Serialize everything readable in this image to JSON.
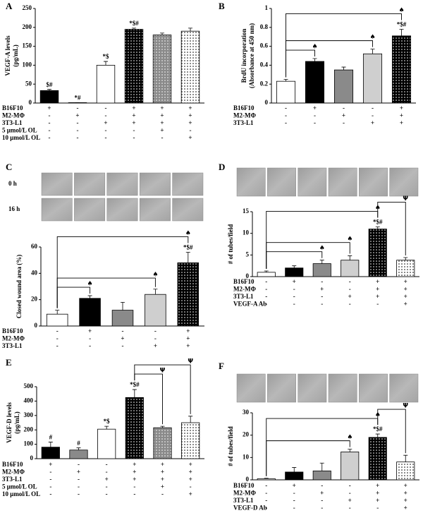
{
  "chart_data": [
    {
      "type": "bar",
      "panel": "A",
      "ylabel": [
        "VEGF-A levels",
        "(pg/mL)"
      ],
      "ylim": [
        0,
        250
      ],
      "yticks": [
        0,
        50,
        100,
        150,
        200,
        250
      ],
      "values": [
        33,
        1,
        100,
        195,
        180,
        190
      ],
      "errors": [
        3,
        0,
        10,
        3,
        5,
        8
      ],
      "colors": [
        "#000000",
        "#000000",
        "#ffffff",
        "#000000",
        "#8a8a8a",
        "#ffffff"
      ],
      "dotted": [
        false,
        false,
        false,
        true,
        true,
        true
      ],
      "bar_labels": [
        "$#",
        "*#",
        "*$",
        "*$#",
        null,
        null
      ],
      "brackets": [],
      "conditions": [
        {
          "name": "B16F10",
          "marks": [
            "+",
            "-",
            "-",
            "+",
            "+",
            "+"
          ]
        },
        {
          "name": "M2-MΦ",
          "marks": [
            "-",
            "+",
            "-",
            "+",
            "+",
            "+"
          ]
        },
        {
          "name": "3T3-L1",
          "marks": [
            "-",
            "-",
            "+",
            "+",
            "+",
            "+"
          ]
        },
        {
          "name": "5 μmol/L OL",
          "marks": [
            "-",
            "-",
            "-",
            "-",
            "+",
            "-"
          ]
        },
        {
          "name": "10 μmol/L OL",
          "marks": [
            "-",
            "-",
            "-",
            "-",
            "-",
            "+"
          ]
        }
      ]
    },
    {
      "type": "bar",
      "panel": "B",
      "ylabel": [
        "BrdU incorporation",
        "(Absorbance at 450 nm)"
      ],
      "ylim": [
        0,
        1
      ],
      "yticks": [
        0,
        0.2,
        0.4,
        0.6,
        0.8,
        1
      ],
      "values": [
        0.23,
        0.44,
        0.35,
        0.52,
        0.71
      ],
      "errors": [
        0.02,
        0.03,
        0.03,
        0.05,
        0.07
      ],
      "colors": [
        "#ffffff",
        "#000000",
        "#8a8a8a",
        "#cfcfcf",
        "#000000"
      ],
      "dotted": [
        false,
        false,
        false,
        false,
        true
      ],
      "bar_labels": [
        null,
        null,
        null,
        null,
        "*$#"
      ],
      "brackets": [
        {
          "from": 0,
          "to": 1,
          "symbol": "♠"
        },
        {
          "from": 0,
          "to": 3,
          "symbol": "♠"
        },
        {
          "from": 0,
          "to": 4,
          "symbol": "♠"
        }
      ],
      "conditions": [
        {
          "name": "B16F10",
          "marks": [
            "-",
            "+",
            "-",
            "-",
            "+"
          ]
        },
        {
          "name": "M2-MΦ",
          "marks": [
            "-",
            "-",
            "+",
            "-",
            "+"
          ]
        },
        {
          "name": "3T3-L1",
          "marks": [
            "-",
            "-",
            "-",
            "+",
            "+"
          ]
        }
      ]
    },
    {
      "type": "bar",
      "panel": "C",
      "ylabel": [
        "Closed wound area (%)"
      ],
      "image_rows": [
        "0 h",
        "16 h"
      ],
      "ylim": [
        0,
        60
      ],
      "yticks": [
        0,
        20,
        40,
        60
      ],
      "values": [
        9,
        21,
        12,
        24,
        48
      ],
      "errors": [
        3,
        2,
        6,
        4,
        8
      ],
      "colors": [
        "#ffffff",
        "#000000",
        "#8a8a8a",
        "#cfcfcf",
        "#000000"
      ],
      "dotted": [
        false,
        false,
        false,
        false,
        true
      ],
      "bar_labels": [
        null,
        null,
        null,
        null,
        "*$#"
      ],
      "brackets": [
        {
          "from": 0,
          "to": 1,
          "symbol": "♠"
        },
        {
          "from": 0,
          "to": 3,
          "symbol": "♠"
        },
        {
          "from": 0,
          "to": 4,
          "symbol": "♠"
        }
      ],
      "conditions": [
        {
          "name": "B16F10",
          "marks": [
            "-",
            "+",
            "-",
            "-",
            "+"
          ]
        },
        {
          "name": "M2-MΦ",
          "marks": [
            "-",
            "-",
            "+",
            "-",
            "+"
          ]
        },
        {
          "name": "3T3-L1",
          "marks": [
            "-",
            "-",
            "-",
            "+",
            "+"
          ]
        }
      ]
    },
    {
      "type": "bar",
      "panel": "D",
      "ylabel": [
        "# of tubes/field"
      ],
      "ylim": [
        0,
        15
      ],
      "yticks": [
        0,
        5,
        10,
        15
      ],
      "values": [
        1,
        2,
        3,
        3.8,
        11,
        3.8
      ],
      "errors": [
        0.3,
        0.5,
        0.8,
        1,
        0.5,
        0.6
      ],
      "colors": [
        "#ffffff",
        "#000000",
        "#8a8a8a",
        "#cfcfcf",
        "#000000",
        "#ffffff"
      ],
      "dotted": [
        false,
        false,
        false,
        false,
        true,
        true
      ],
      "bar_labels": [
        null,
        null,
        null,
        null,
        "*$#",
        null
      ],
      "brackets": [
        {
          "from": 0,
          "to": 2,
          "symbol": "♠"
        },
        {
          "from": 0,
          "to": 3,
          "symbol": "♠"
        },
        {
          "from": 0,
          "to": 4,
          "symbol": "♠"
        },
        {
          "from": 4,
          "to": 5,
          "symbol": "Ψ"
        }
      ],
      "conditions": [
        {
          "name": "B16F10",
          "marks": [
            "-",
            "+",
            "-",
            "-",
            "+",
            "+"
          ]
        },
        {
          "name": "M2-MΦ",
          "marks": [
            "-",
            "-",
            "+",
            "-",
            "+",
            "+"
          ]
        },
        {
          "name": "3T3-L1",
          "marks": [
            "-",
            "-",
            "-",
            "+",
            "+",
            "+"
          ]
        },
        {
          "name": "VEGF-A  Ab",
          "marks": [
            "-",
            "-",
            "-",
            "-",
            "-",
            "+"
          ]
        }
      ]
    },
    {
      "type": "bar",
      "panel": "E",
      "ylabel": [
        "VEGF-D  levels",
        "(pg/mL)"
      ],
      "ylim": [
        0,
        500
      ],
      "yticks": [
        0,
        100,
        200,
        300,
        400,
        500
      ],
      "values": [
        80,
        60,
        205,
        425,
        215,
        250
      ],
      "errors": [
        35,
        15,
        20,
        55,
        10,
        45
      ],
      "colors": [
        "#000000",
        "#8a8a8a",
        "#ffffff",
        "#000000",
        "#8a8a8a",
        "#ffffff"
      ],
      "dotted": [
        false,
        false,
        false,
        true,
        true,
        true
      ],
      "bar_labels": [
        "#",
        "#",
        "*$",
        "*$#",
        null,
        null
      ],
      "brackets": [
        {
          "from": 3,
          "to": 4,
          "symbol": "Ψ"
        },
        {
          "from": 3,
          "to": 5,
          "symbol": "Ψ"
        }
      ],
      "conditions": [
        {
          "name": "B16F10",
          "marks": [
            "+",
            "-",
            "-",
            "+",
            "+",
            "+"
          ]
        },
        {
          "name": "M2-MΦ",
          "marks": [
            "-",
            "+",
            "-",
            "+",
            "+",
            "+"
          ]
        },
        {
          "name": "3T3-L1",
          "marks": [
            "-",
            "-",
            "+",
            "+",
            "+",
            "+"
          ]
        },
        {
          "name": "5 μmol/L OL",
          "marks": [
            "-",
            "-",
            "-",
            "-",
            "+",
            "-"
          ]
        },
        {
          "name": "10 μmol/L OL",
          "marks": [
            "-",
            "-",
            "-",
            "-",
            "-",
            "+"
          ]
        }
      ]
    },
    {
      "type": "bar",
      "panel": "F",
      "ylabel": [
        "# of tubes/field"
      ],
      "ylim": [
        0,
        30
      ],
      "yticks": [
        0,
        10,
        20,
        30
      ],
      "values": [
        0.5,
        3.5,
        4,
        12.5,
        19,
        8
      ],
      "errors": [
        0.2,
        2,
        3.5,
        1.2,
        1.5,
        3
      ],
      "colors": [
        "#ffffff",
        "#000000",
        "#8a8a8a",
        "#cfcfcf",
        "#000000",
        "#ffffff"
      ],
      "dotted": [
        false,
        false,
        false,
        false,
        true,
        true
      ],
      "bar_labels": [
        null,
        null,
        null,
        null,
        "*$#",
        null
      ],
      "brackets": [
        {
          "from": 0,
          "to": 3,
          "symbol": "♠"
        },
        {
          "from": 0,
          "to": 4,
          "symbol": "♠"
        },
        {
          "from": 4,
          "to": 5,
          "symbol": "Ψ"
        }
      ],
      "conditions": [
        {
          "name": "B16F10",
          "marks": [
            "-",
            "+",
            "-",
            "-",
            "+",
            "+"
          ]
        },
        {
          "name": "M2-MΦ",
          "marks": [
            "-",
            "-",
            "+",
            "-",
            "+",
            "+"
          ]
        },
        {
          "name": "3T3-L1",
          "marks": [
            "-",
            "-",
            "-",
            "+",
            "+",
            "+"
          ]
        },
        {
          "name": "VEGF-D  Ab",
          "marks": [
            "-",
            "-",
            "-",
            "-",
            "-",
            "+"
          ]
        }
      ]
    }
  ]
}
